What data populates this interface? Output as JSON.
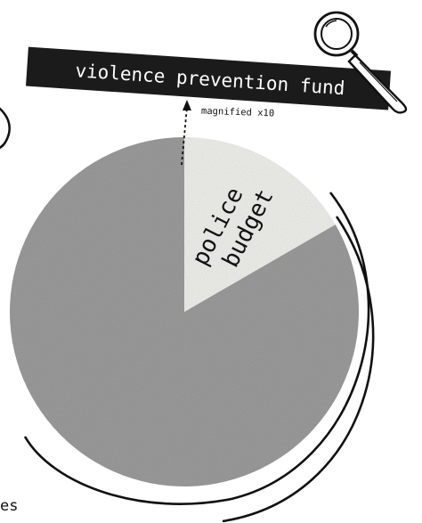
{
  "chart_data": {
    "type": "pie",
    "title": "",
    "slices": [
      {
        "label": "police budget",
        "color": "#eeeeea"
      },
      {
        "label": "",
        "color": "#9b9b9b"
      }
    ],
    "annotations": {
      "banner": "violence prevention fund",
      "note": "magnified x10",
      "cropped_text": "es"
    }
  },
  "icons": {
    "magnifier": "magnifying-glass-icon"
  }
}
